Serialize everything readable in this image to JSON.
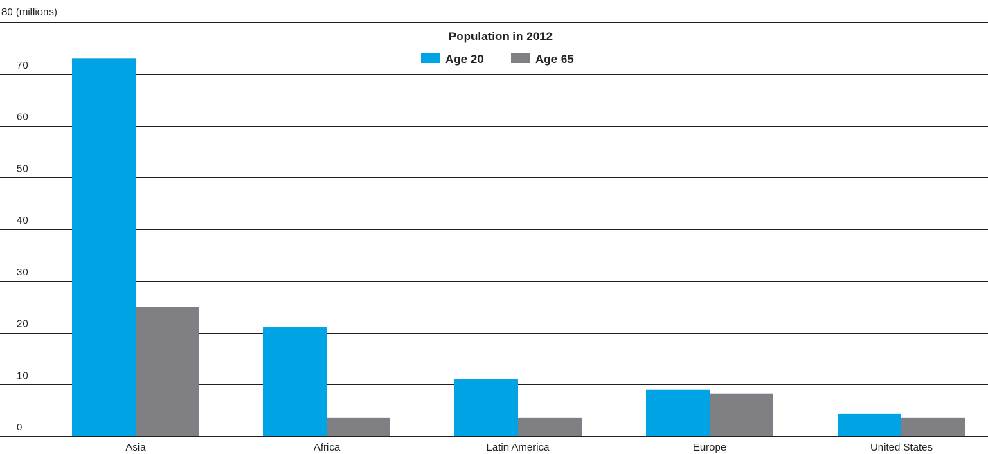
{
  "chart_data": {
    "type": "bar",
    "title": "Population in 2012",
    "unit_label": "80 (millions)",
    "categories": [
      "Asia",
      "Africa",
      "Latin America",
      "Europe",
      "United States"
    ],
    "series": [
      {
        "name": "Age 20",
        "color": "#00a4e4",
        "values": [
          73,
          21,
          11,
          9,
          4.3
        ]
      },
      {
        "name": "Age 65",
        "color": "#808084",
        "values": [
          25,
          3.5,
          3.5,
          8.2,
          3.5
        ]
      }
    ],
    "ylim": [
      0,
      80
    ],
    "yticks": [
      "0",
      "10",
      "20",
      "30",
      "40",
      "50",
      "60",
      "70"
    ],
    "grid": true,
    "legend_position": "top-center"
  }
}
